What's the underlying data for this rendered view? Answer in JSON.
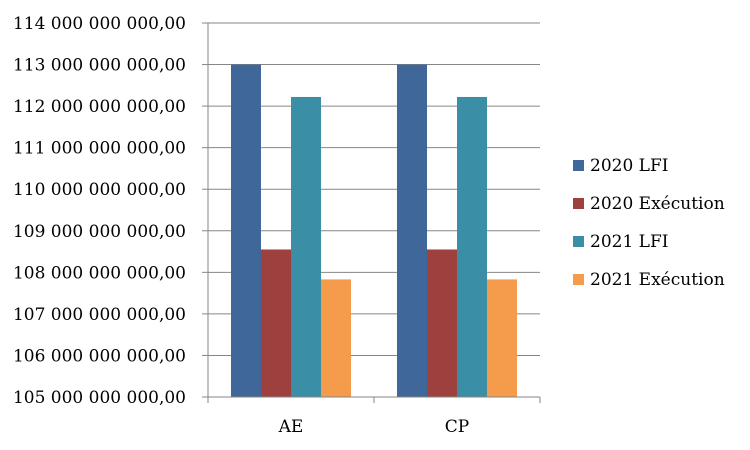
{
  "chart_data": {
    "type": "bar",
    "categories": [
      "AE",
      "CP"
    ],
    "series": [
      {
        "name": "2020 LFI",
        "values": [
          113000000000,
          113000000000
        ],
        "color": "#3F6799"
      },
      {
        "name": "2020 Exécution",
        "values": [
          108550000000,
          108550000000
        ],
        "color": "#9E413E"
      },
      {
        "name": "2021 LFI",
        "values": [
          112220000000,
          112220000000
        ],
        "color": "#3A8FA6"
      },
      {
        "name": "2021 Exécution",
        "values": [
          107830000000,
          107830000000
        ],
        "color": "#F59B4C"
      }
    ],
    "ylim": [
      105000000000,
      114000000000
    ],
    "yticks": [
      "105 000 000 000,00",
      "106 000 000 000,00",
      "107 000 000 000,00",
      "108 000 000 000,00",
      "109 000 000 000,00",
      "110 000 000 000,00",
      "111 000 000 000,00",
      "112 000 000 000,00",
      "113 000 000 000,00",
      "114 000 000 000,00"
    ],
    "grid": "horizontal",
    "legend_position": "right"
  }
}
